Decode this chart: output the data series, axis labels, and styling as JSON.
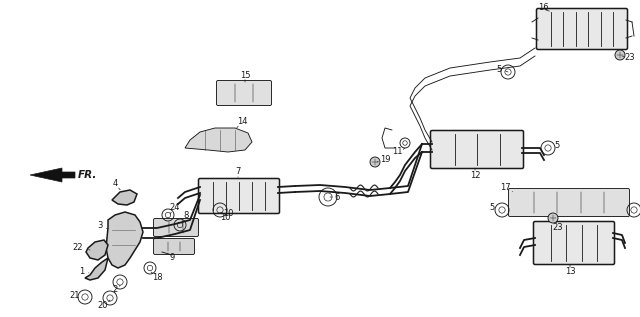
{
  "bg_color": "#ffffff",
  "line_color": "#1a1a1a",
  "label_color": "#111111",
  "lw_main": 1.1,
  "lw_thin": 0.65,
  "lw_pipe": 1.3,
  "label_fs": 6.0,
  "figw": 6.4,
  "figh": 3.17,
  "dpi": 100
}
